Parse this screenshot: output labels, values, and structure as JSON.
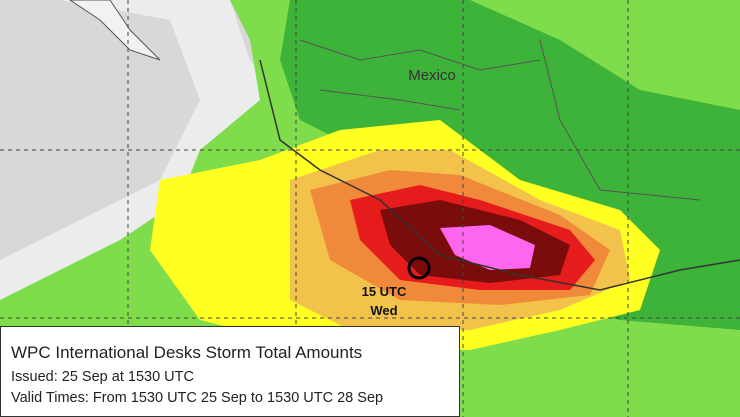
{
  "map": {
    "country_label": "Mexico",
    "storm_time": "15 UTC",
    "storm_day": "Wed"
  },
  "legend_box": {
    "title": "WPC International Desks Storm Total Amounts",
    "issued": "Issued:  25 Sep at 1530 UTC",
    "valid_times": "Valid Times:  From 1530 UTC 25 Sep to 1530 UTC 28 Sep"
  }
}
